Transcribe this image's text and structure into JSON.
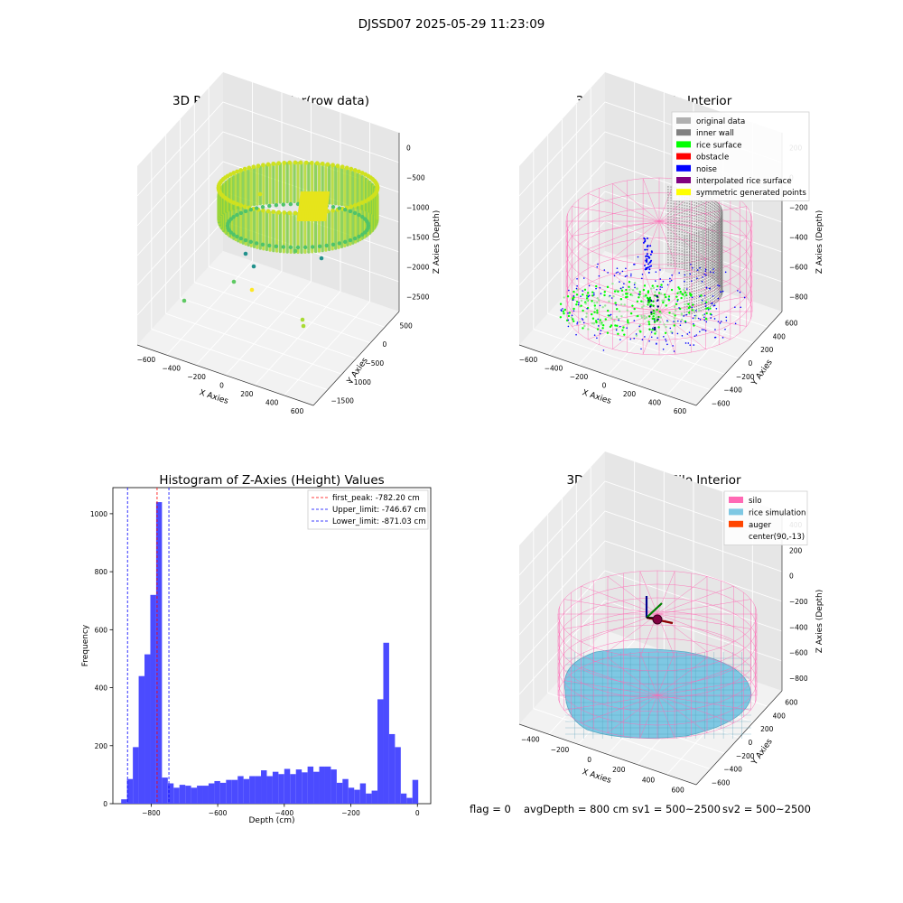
{
  "suptitle": "DJSSD07 2025-05-29 11:23:09",
  "footer": {
    "flag": "flag = 0",
    "avg": "avgDepth = 800 cm",
    "sv1": "sv1 = 500~2500",
    "sv2": "sv2 = 500~2500"
  },
  "colors": {
    "histogram": "#4b4bff",
    "first_peak": "#ff0000",
    "limits": "#0000ff",
    "silo": "#ff69b4",
    "rice_simulation": "#7ec8e3",
    "auger": "#ff4500",
    "rice_surface": "#00ff00",
    "noise": "#0000ff",
    "inner_wall": "#808080",
    "original_data": "#b0b0b0",
    "obstacle": "#ff0000",
    "interpolated_rice_surface": "#800080",
    "symmetric_generated_points": "#ffff00"
  },
  "chart_data": [
    {
      "type": "scatter",
      "projection": "3d",
      "title": "3D Plot of Silo Interior(row data)",
      "xlabel": "X Axies",
      "ylabel": "Y Axies",
      "zlabel": "Z Axies (Depth)",
      "xticks": [
        "−600",
        "−400",
        "−200",
        "0",
        "200",
        "400",
        "600"
      ],
      "yticks": [
        "500",
        "0",
        "−500",
        "−1000",
        "−1500"
      ],
      "zticks": [
        "0",
        "−500",
        "−1000",
        "−1500",
        "−2000",
        "−2500"
      ],
      "colormap": "viridis",
      "grid": true
    },
    {
      "type": "scatter",
      "projection": "3d",
      "title": "3D classify of Silo Interior",
      "xlabel": "X Axies",
      "ylabel": "Y Axies",
      "zlabel": "Z Axies (Depth)",
      "xticks": [
        "−600",
        "−400",
        "−200",
        "0",
        "200",
        "400",
        "600"
      ],
      "yticks": [
        "600",
        "400",
        "200",
        "0",
        "−200",
        "−400",
        "−600"
      ],
      "zticks": [
        "200",
        "0",
        "−200",
        "−400",
        "−600",
        "−800"
      ],
      "legend_position": "top-right",
      "legend": [
        {
          "label": "original data",
          "color": "#b0b0b0"
        },
        {
          "label": "inner wall",
          "color": "#808080"
        },
        {
          "label": "rice surface",
          "color": "#00ff00"
        },
        {
          "label": "obstacle",
          "color": "#ff0000"
        },
        {
          "label": "noise",
          "color": "#0000ff"
        },
        {
          "label": "interpolated rice surface",
          "color": "#800080"
        },
        {
          "label": "symmetric generated points",
          "color": "#ffff00"
        }
      ],
      "grid": true
    },
    {
      "type": "bar",
      "subtype": "histogram",
      "title": "Histogram of Z-Axies (Height) Values",
      "xlabel": "Depth (cm)",
      "ylabel": "Frequency",
      "xlim": [
        -915,
        40
      ],
      "ylim": [
        0,
        1090
      ],
      "xticks": [
        -800,
        -600,
        -400,
        -200,
        0
      ],
      "xtick_labels": [
        "−800",
        "−600",
        "−400",
        "−200",
        "0"
      ],
      "yticks": [
        0,
        200,
        400,
        600,
        800,
        1000
      ],
      "bin_width": 17.5,
      "bin_edges_start": -890,
      "values": [
        15,
        85,
        195,
        440,
        515,
        720,
        1040,
        90,
        70,
        55,
        65,
        62,
        55,
        62,
        62,
        70,
        78,
        72,
        82,
        82,
        95,
        85,
        95,
        95,
        115,
        95,
        110,
        102,
        120,
        102,
        118,
        108,
        128,
        110,
        128,
        128,
        118,
        72,
        85,
        55,
        48,
        70,
        35,
        45,
        360,
        555,
        240,
        195,
        35,
        20,
        82
      ],
      "lines": [
        {
          "x": -782.2,
          "label": "first_peak: -782.20 cm",
          "color": "#ff0000"
        },
        {
          "x": -746.67,
          "label": "Upper_limit: -746.67 cm",
          "color": "#0000ff"
        },
        {
          "x": -871.03,
          "label": "Lower_limit: -871.03 cm",
          "color": "#0000ff"
        }
      ],
      "legend_position": "top-right",
      "grid": false
    },
    {
      "type": "scatter",
      "projection": "3d",
      "title": "3D simulation of Silo Interior",
      "xlabel": "X Axies",
      "ylabel": "Y Axies",
      "zlabel": "Z Axies (Depth)",
      "xticks": [
        "−400",
        "−200",
        "0",
        "200",
        "400",
        "600"
      ],
      "yticks": [
        "600",
        "400",
        "200",
        "0",
        "−200",
        "−400",
        "−600"
      ],
      "zticks": [
        "400",
        "200",
        "0",
        "−200",
        "−400",
        "−600",
        "−800"
      ],
      "legend_position": "top-right",
      "legend": [
        {
          "label": "silo",
          "color": "#ff69b4"
        },
        {
          "label": "rice simulation",
          "color": "#7ec8e3"
        },
        {
          "label": "auger",
          "color": "#ff4500"
        },
        {
          "label": "center(90,-13)",
          "color": ""
        }
      ],
      "grid": true
    }
  ]
}
